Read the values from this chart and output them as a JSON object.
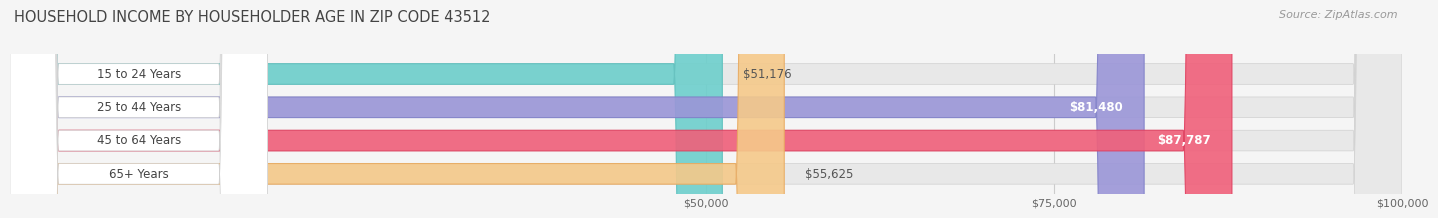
{
  "title": "HOUSEHOLD INCOME BY HOUSEHOLDER AGE IN ZIP CODE 43512",
  "source": "Source: ZipAtlas.com",
  "categories": [
    "15 to 24 Years",
    "25 to 44 Years",
    "45 to 64 Years",
    "65+ Years"
  ],
  "values": [
    51176,
    81480,
    87787,
    55625
  ],
  "bar_colors": [
    "#6dcfcc",
    "#9b96d8",
    "#f0607a",
    "#f5c98a"
  ],
  "bar_edge_colors": [
    "#5bbfbc",
    "#8080c8",
    "#e04060",
    "#e8aa60"
  ],
  "value_labels": [
    "$51,176",
    "$81,480",
    "$87,787",
    "$55,625"
  ],
  "value_inside": [
    false,
    true,
    true,
    false
  ],
  "xlim_min": 0,
  "xlim_max": 100000,
  "xticks": [
    50000,
    75000,
    100000
  ],
  "xtick_labels": [
    "$50,000",
    "$75,000",
    "$100,000"
  ],
  "bar_height": 0.62,
  "background_color": "#f5f5f5",
  "bar_bg_color": "#e8e8e8",
  "title_fontsize": 10.5,
  "source_fontsize": 8,
  "label_fontsize": 8.5,
  "value_fontsize": 8.5,
  "tick_fontsize": 8
}
